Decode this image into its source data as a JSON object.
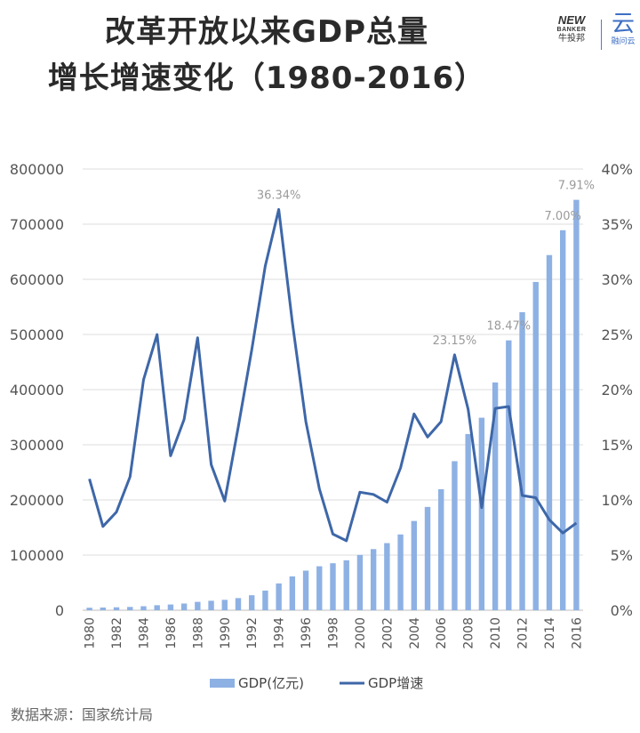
{
  "header": {
    "title_line1": "改革开放以来GDP总量",
    "title_line2": "增长增速变化（1980-2016）"
  },
  "logos": {
    "newbanker_top": "NEW",
    "newbanker_mid": "BANKER",
    "newbanker_cn": "牛投邦",
    "yun_main": "云",
    "yun_sub": "融问云"
  },
  "footer": {
    "source": "数据来源：国家统计局"
  },
  "colors": {
    "bar": "#8eb1e4",
    "line": "#3e67a8",
    "grid": "#dedede"
  },
  "chart_data": {
    "type": "bar+line",
    "x": [
      1980,
      1981,
      1982,
      1983,
      1984,
      1985,
      1986,
      1987,
      1988,
      1989,
      1990,
      1991,
      1992,
      1993,
      1994,
      1995,
      1996,
      1997,
      1998,
      1999,
      2000,
      2001,
      2002,
      2003,
      2004,
      2005,
      2006,
      2007,
      2008,
      2009,
      2010,
      2011,
      2012,
      2013,
      2014,
      2015,
      2016
    ],
    "xtick_labels": [
      "1980",
      "1982",
      "1984",
      "1986",
      "1988",
      "1990",
      "1992",
      "1994",
      "1996",
      "1998",
      "2000",
      "2002",
      "2004",
      "2006",
      "2008",
      "2010",
      "2012",
      "2014",
      "2016"
    ],
    "series": [
      {
        "name": "GDP(亿元)",
        "type": "bar",
        "axis": "left",
        "values": [
          4588,
          4936,
          5373,
          6021,
          7279,
          9099,
          10376,
          12175,
          15180,
          17180,
          18873,
          22006,
          27195,
          35673,
          48638,
          61340,
          71814,
          79715,
          85196,
          90564,
          100280,
          110863,
          121717,
          137422,
          161840,
          187319,
          219439,
          270232,
          319516,
          349081,
          413030,
          489301,
          540367,
          595244,
          643974,
          689052,
          744127
        ]
      },
      {
        "name": "GDP增速",
        "type": "line",
        "axis": "right",
        "values": [
          11.9,
          7.6,
          8.9,
          12.1,
          20.9,
          25.0,
          14.0,
          17.3,
          24.7,
          13.2,
          9.9,
          16.6,
          23.6,
          31.2,
          36.34,
          26.1,
          17.1,
          11.0,
          6.9,
          6.3,
          10.7,
          10.5,
          9.8,
          12.9,
          17.8,
          15.7,
          17.1,
          23.15,
          18.2,
          9.3,
          18.3,
          18.47,
          10.4,
          10.2,
          8.2,
          7.0,
          7.91
        ]
      }
    ],
    "y_left": {
      "min": 0,
      "max": 800000,
      "ticks": [
        "0",
        "100000",
        "200000",
        "300000",
        "400000",
        "500000",
        "600000",
        "700000",
        "800000"
      ]
    },
    "y_right": {
      "min": 0,
      "max": 40,
      "ticks": [
        "0%",
        "5%",
        "10%",
        "15%",
        "20%",
        "25%",
        "30%",
        "35%",
        "40%"
      ]
    },
    "annotations": [
      {
        "year": 1994,
        "label": "36.34%"
      },
      {
        "year": 2007,
        "label": "23.15%"
      },
      {
        "year": 2011,
        "label": "18.47%"
      },
      {
        "year": 2015,
        "label": "7.00%"
      },
      {
        "year": 2016,
        "label": "7.91%"
      }
    ],
    "grid": true,
    "legend_position": "bottom"
  }
}
